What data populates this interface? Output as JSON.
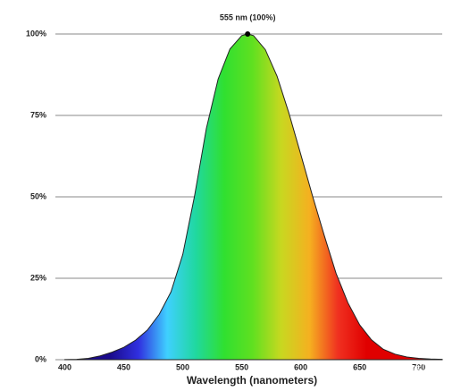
{
  "chart_data": {
    "type": "area",
    "x": [
      400,
      410,
      420,
      430,
      440,
      450,
      460,
      470,
      480,
      490,
      500,
      510,
      520,
      530,
      540,
      550,
      555,
      560,
      570,
      580,
      590,
      600,
      610,
      620,
      630,
      640,
      650,
      660,
      670,
      680,
      690,
      700,
      710,
      720
    ],
    "values": [
      0.04,
      0.12,
      0.4,
      1.16,
      2.3,
      3.8,
      6,
      9.1,
      13.9,
      20.8,
      32.3,
      50.3,
      71,
      86.2,
      95.4,
      99.5,
      100,
      99.5,
      95.2,
      87,
      75.7,
      63.1,
      50.3,
      38.1,
      26.5,
      17.5,
      10.7,
      6.1,
      3.2,
      1.7,
      0.82,
      0.41,
      0.21,
      0.1
    ],
    "colors": [
      "#1a0a8c",
      "#3030e0",
      "#3fd0ff",
      "#20d8a0",
      "#30e030",
      "#60e020",
      "#c8d820",
      "#f5b020",
      "#f03020",
      "#e00000"
    ],
    "xlim": [
      392,
      720
    ],
    "ylim": [
      0,
      100
    ],
    "xticks": [
      400,
      450,
      500,
      550,
      600,
      650,
      700
    ],
    "yticks": [
      {
        "value": 0,
        "label": "0%"
      },
      {
        "value": 25,
        "label": "25%"
      },
      {
        "value": 50,
        "label": "50%"
      },
      {
        "value": 75,
        "label": "75%"
      },
      {
        "value": 100,
        "label": "100%"
      }
    ],
    "grid": true,
    "x_label": "Wavelength (nanometers)",
    "annotation": {
      "text": "555 nm (100%)",
      "x": 555,
      "y": 100
    },
    "watermark": "知乎 @SennettDeng"
  }
}
